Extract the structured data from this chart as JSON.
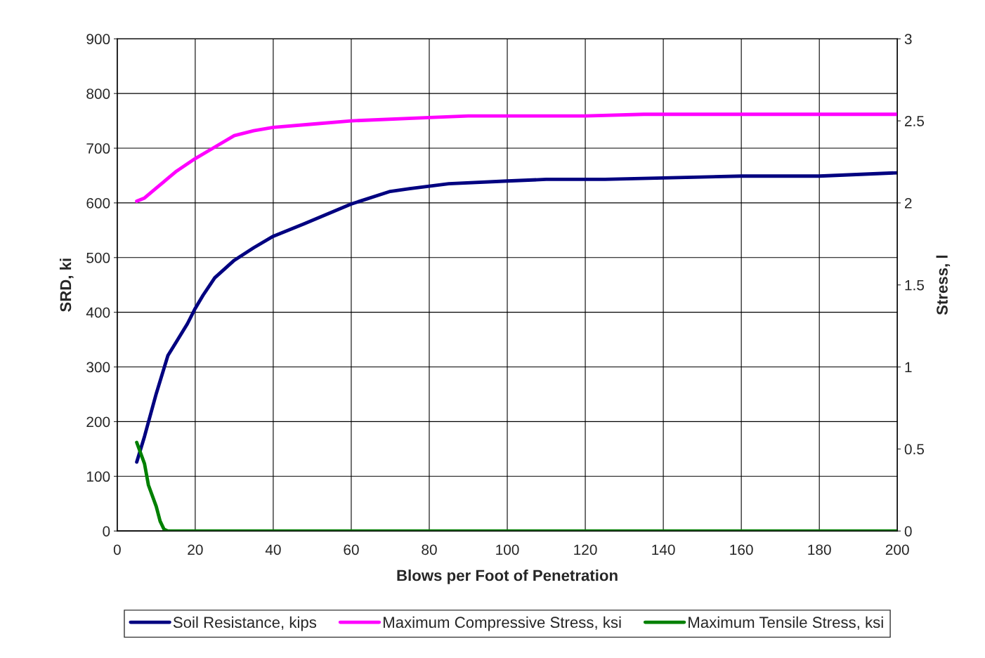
{
  "chart_data": {
    "type": "line",
    "xlabel": "Blows per Foot of Penetration",
    "ylabel": "SRD, ki",
    "y2label": "Stress, l",
    "xlim": [
      0,
      200
    ],
    "xticks": [
      0,
      20,
      40,
      60,
      80,
      100,
      120,
      140,
      160,
      180,
      200
    ],
    "ylim": [
      0,
      900
    ],
    "yticks": [
      0,
      100,
      200,
      300,
      400,
      500,
      600,
      700,
      800,
      900
    ],
    "y2lim": [
      0,
      3
    ],
    "y2ticks": [
      0,
      0.5,
      1,
      1.5,
      2,
      2.5,
      3
    ],
    "grid": true,
    "legend": "bottom",
    "marker": "none",
    "line_style": "solid",
    "series": [
      {
        "name": "Soil Resistance, kips",
        "color": "#000080",
        "x": [
          5,
          7,
          10,
          13,
          15,
          18,
          20,
          22,
          25,
          30,
          35,
          40,
          48,
          60,
          70,
          75,
          85,
          100,
          110,
          125,
          160,
          180,
          200
        ],
        "values": [
          126,
          173,
          251,
          321,
          344,
          379,
          407,
          431,
          463,
          495,
          518,
          539,
          562,
          598,
          621,
          626,
          635,
          640,
          643,
          643,
          649,
          649,
          655
        ]
      },
      {
        "name": "Maximum Compressive Stress, ksi",
        "color": "#ff00ff",
        "axis": "y2",
        "x": [
          5,
          7,
          10,
          12,
          15,
          20,
          25,
          30,
          35,
          40,
          50,
          60,
          80,
          90,
          120,
          135,
          200
        ],
        "values": [
          2.01,
          2.03,
          2.09,
          2.13,
          2.19,
          2.27,
          2.34,
          2.41,
          2.44,
          2.46,
          2.48,
          2.5,
          2.52,
          2.53,
          2.53,
          2.54,
          2.54
        ]
      },
      {
        "name": "Maximum Tensile Stress, ksi",
        "color": "#008000",
        "axis": "y2",
        "x": [
          5,
          7,
          8,
          10,
          11,
          12,
          13,
          200
        ],
        "values": [
          0.54,
          0.41,
          0.28,
          0.15,
          0.06,
          0.01,
          0,
          0
        ]
      }
    ]
  }
}
